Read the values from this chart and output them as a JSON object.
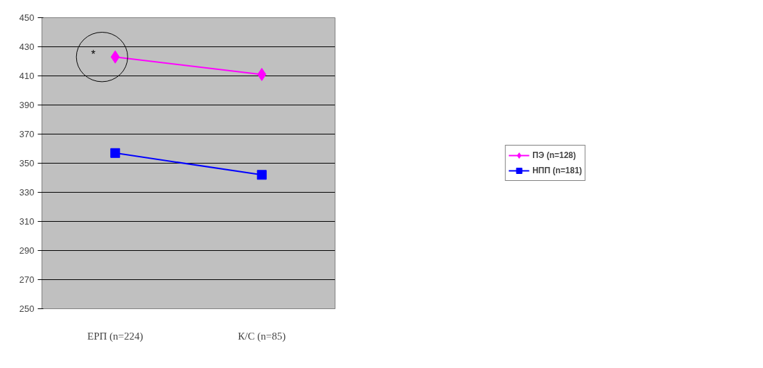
{
  "chart_data": {
    "type": "line",
    "categories": [
      "ЕРП (n=224)",
      "К/С (n=85)"
    ],
    "series": [
      {
        "name": "ПЭ (n=128)",
        "color": "#ff00ff",
        "marker": "diamond",
        "values": [
          423,
          411
        ]
      },
      {
        "name": "НПП (n=181)",
        "color": "#0000ff",
        "marker": "square",
        "values": [
          357,
          342
        ]
      }
    ],
    "ylim": [
      250,
      450
    ],
    "yticks": [
      250,
      270,
      290,
      310,
      330,
      350,
      370,
      390,
      410,
      430,
      450
    ],
    "grid": "y",
    "legend": "right",
    "annotations": [
      {
        "text": "*",
        "x": "ЕРП (n=224)",
        "y": 425
      }
    ]
  }
}
